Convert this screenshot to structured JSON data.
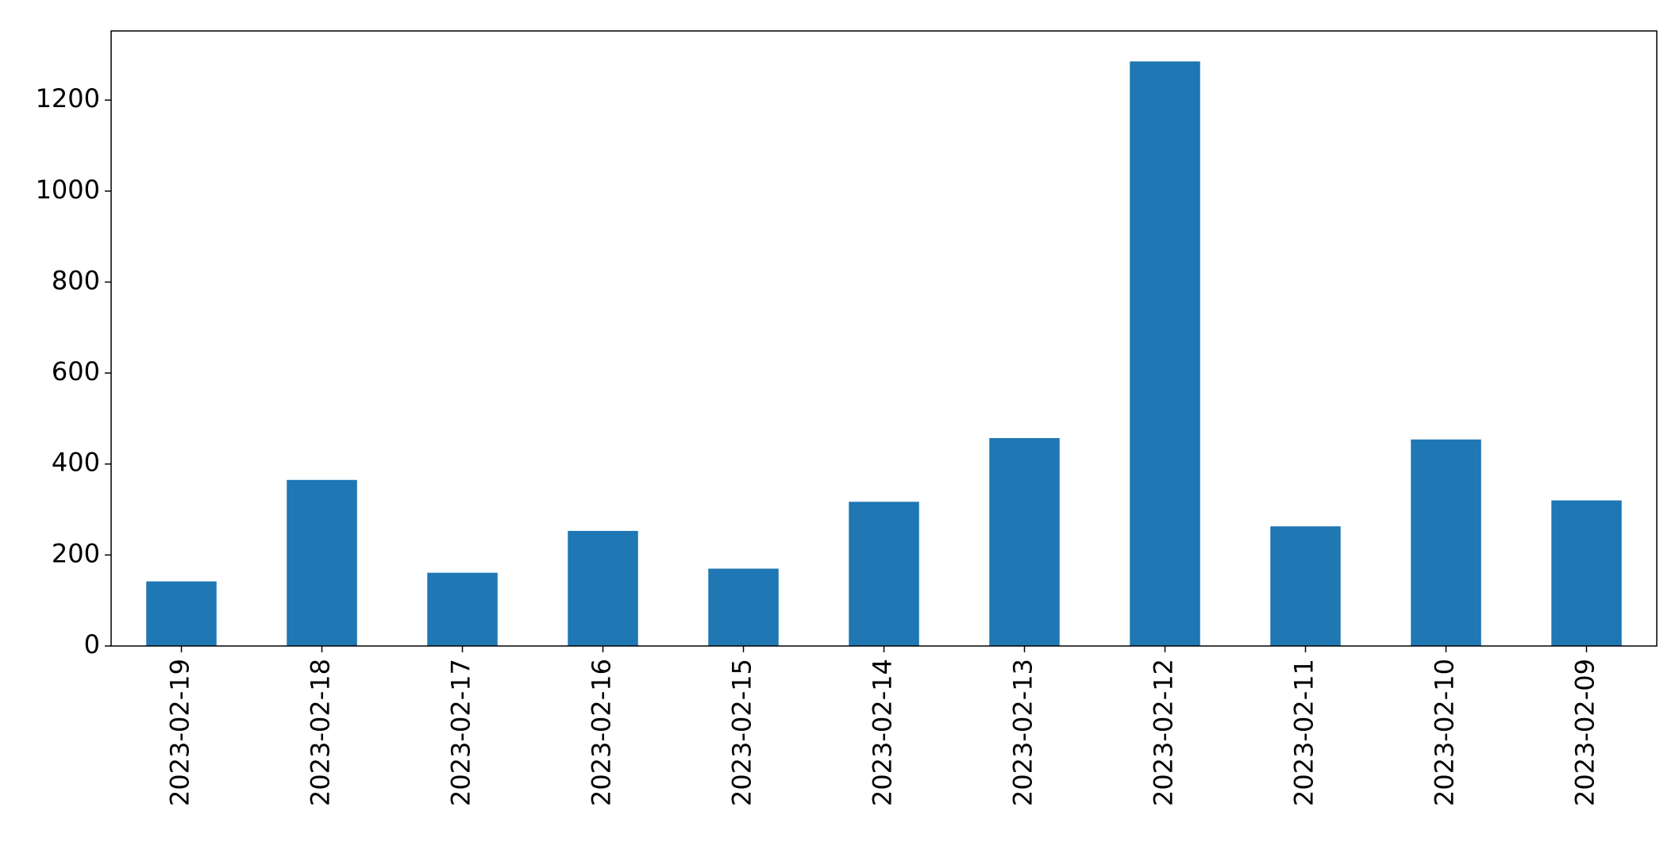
{
  "chart_data": {
    "type": "bar",
    "categories": [
      "2023-02-19",
      "2023-02-18",
      "2023-02-17",
      "2023-02-16",
      "2023-02-15",
      "2023-02-14",
      "2023-02-13",
      "2023-02-12",
      "2023-02-11",
      "2023-02-10",
      "2023-02-09"
    ],
    "values": [
      142,
      365,
      161,
      253,
      170,
      317,
      457,
      1285,
      263,
      454,
      320
    ],
    "color": "#1f77b4",
    "ylim": [
      0,
      1352
    ],
    "yticks": [
      0,
      200,
      400,
      600,
      800,
      1000,
      1200
    ],
    "grid": false
  }
}
